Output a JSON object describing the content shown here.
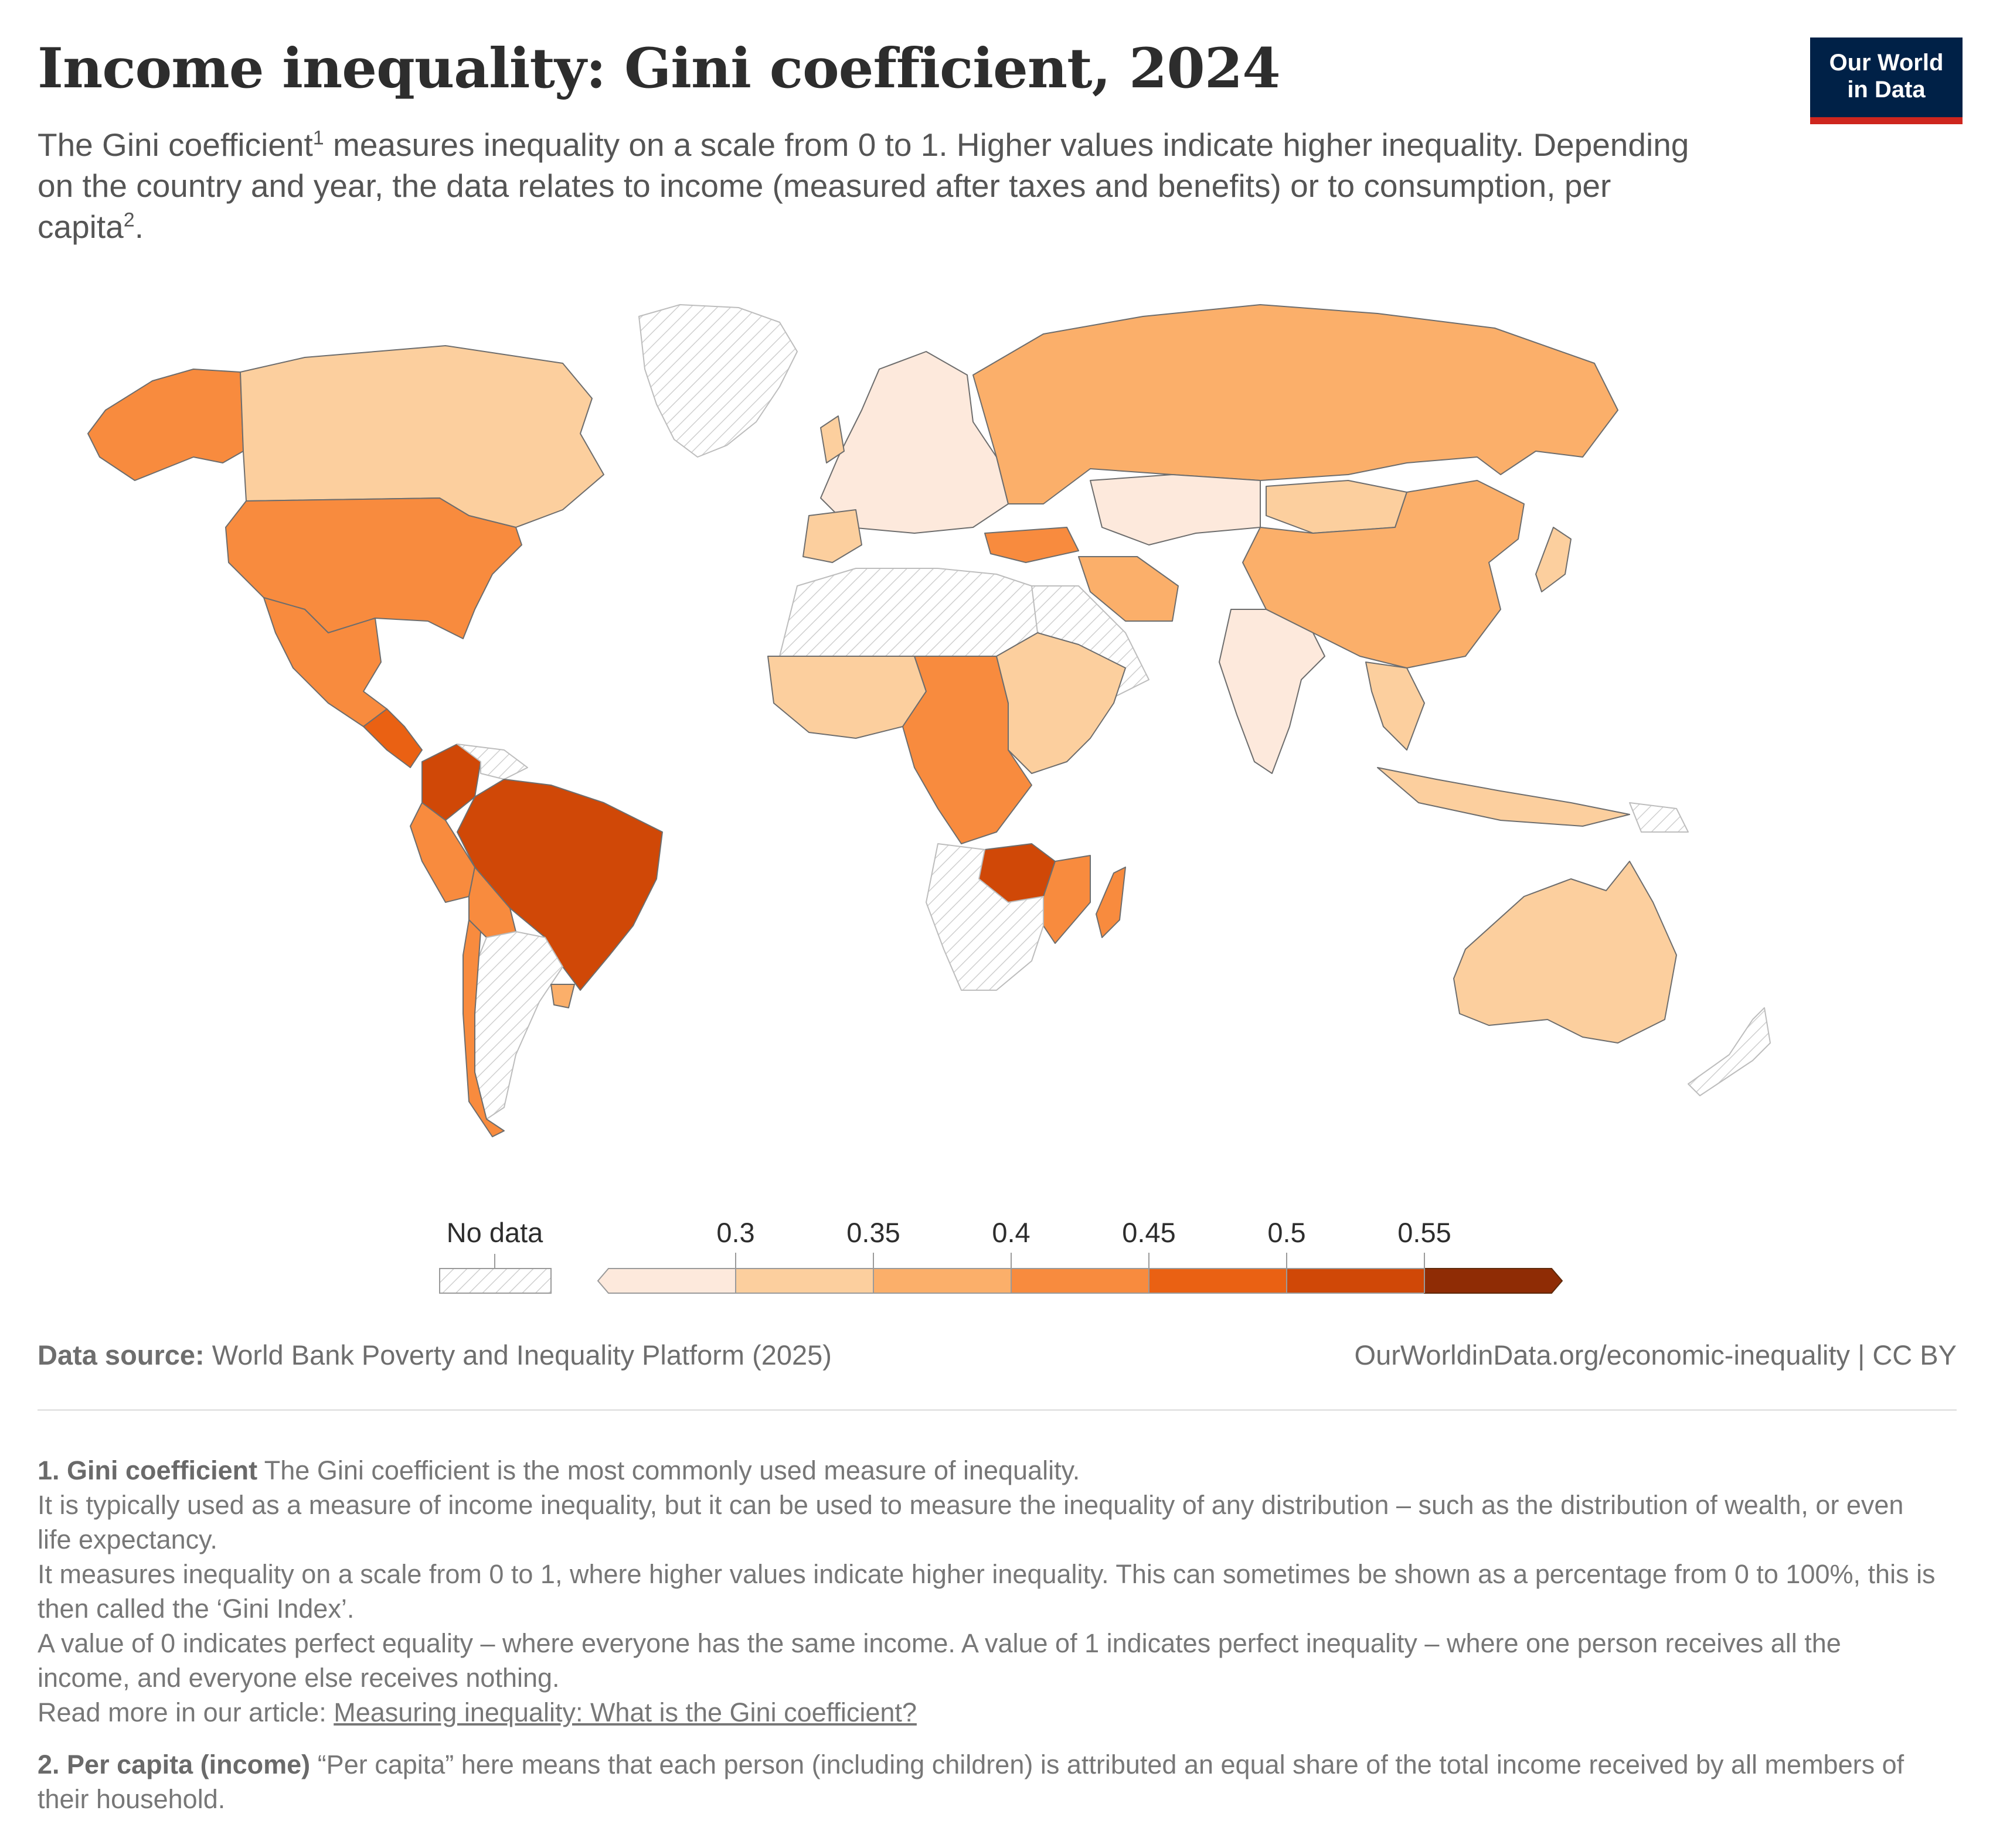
{
  "header": {
    "title": "Income inequality: Gini coefficient, 2024",
    "subtitle_part1": "The Gini coefficient",
    "subtitle_sup1": "1",
    "subtitle_part2": " measures inequality on a scale from 0 to 1. Higher values indicate higher inequality. Depending on the country and year, the data relates to income (measured after taxes and benefits) or to consumption, per capita",
    "subtitle_sup2": "2",
    "subtitle_part3": "."
  },
  "logo": {
    "line1": "Our World",
    "line2": "in Data"
  },
  "legend": {
    "no_data_label": "No data",
    "bins": [
      {
        "label": "",
        "color": "#fde9dc"
      },
      {
        "label": "0.3",
        "color": "#fccf9e"
      },
      {
        "label": "0.35",
        "color": "#fbaf6a"
      },
      {
        "label": "0.4",
        "color": "#f88b3e"
      },
      {
        "label": "0.45",
        "color": "#ea6113"
      },
      {
        "label": "0.5",
        "color": "#d04807"
      },
      {
        "label": "0.55",
        "color": "#8f2c05"
      }
    ]
  },
  "colors": {
    "no_data_hatch": "#cfcfcf",
    "country_border": "#6d6d6d",
    "bin_0": "#fde9dc",
    "bin_1": "#fccf9e",
    "bin_2": "#fbaf6a",
    "bin_3": "#f88b3e",
    "bin_4": "#ea6113",
    "bin_5": "#d04807",
    "bin_6": "#8f2c05"
  },
  "footer": {
    "source_label": "Data source:",
    "source_text": "World Bank Poverty and Inequality Platform (2025)",
    "url_text": "OurWorldinData.org/economic-inequality | CC BY"
  },
  "notes": {
    "n1_head": "1. Gini coefficient",
    "n1_lead": "The Gini coefficient is the most commonly used measure of inequality.",
    "n1_p2": "It is typically used as a measure of income inequality, but it can be used to measure the inequality of any distribution – such as the distribution of wealth, or even life expectancy.",
    "n1_p3": "It measures inequality on a scale from 0 to 1, where higher values indicate higher inequality. This can sometimes be shown as a percentage from 0 to 100%, this is then called the ‘Gini Index’.",
    "n1_p4": "A value of 0 indicates perfect equality – where everyone has the same income. A value of 1 indicates perfect inequality – where one person receives all the income, and everyone else receives nothing.",
    "n1_read_more": "Read more in our article: ",
    "n1_link": "Measuring inequality: What is the Gini coefficient?",
    "n2_head": "2. Per capita (income)",
    "n2_text": "“Per capita” here means that each person (including children) is attributed an equal share of the total income received by all members of their household."
  }
}
